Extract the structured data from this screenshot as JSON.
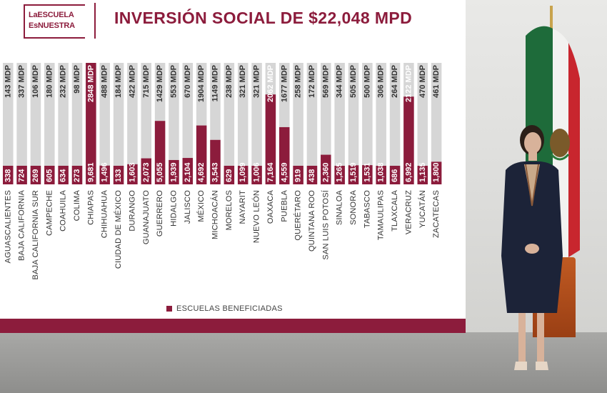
{
  "header": {
    "logo_line1": "LaESCUELA",
    "logo_line2": "EsNUESTRA",
    "title": "INVERSIÓN SOCIAL DE $22,048 MPD"
  },
  "legend": {
    "label": "ESCUELAS BENEFICIADAS"
  },
  "colors": {
    "bar": "#8c1c3c",
    "bar_background": "#d6d6d6",
    "accent": "#8c1c3c"
  },
  "chart_data": {
    "type": "bar",
    "title": "INVERSIÓN SOCIAL DE $22,048 MPD",
    "categories": [
      "AGUASCALIENTES",
      "BAJA CALIFORNIA",
      "BAJA CALIFORNIA SUR",
      "CAMPECHE",
      "COAHUILA",
      "COLIMA",
      "CHIAPAS",
      "CHIHUAHUA",
      "CIUDAD DE MÉXICO",
      "DURANGO",
      "GUANAJUATO",
      "GUERRERO",
      "HIDALGO",
      "JALISCO",
      "MÉXICO",
      "MICHOACÁN",
      "MORELOS",
      "NAYARIT",
      "NUEVO LEÓN",
      "OAXACA",
      "PUEBLA",
      "QUERÉTARO",
      "QUINTANA ROO",
      "SAN LUIS POTOSÍ",
      "SINALOA",
      "SONORA",
      "TABASCO",
      "TAMAULIPAS",
      "TLAXCALA",
      "VERACRUZ",
      "YUCATÁN",
      "ZACATECAS"
    ],
    "series": [
      {
        "name": "ESCUELAS BENEFICIADAS",
        "values": [
          338,
          724,
          269,
          605,
          634,
          273,
          9681,
          1496,
          133,
          1603,
          2073,
          5055,
          1939,
          2104,
          4692,
          3543,
          629,
          1099,
          1006,
          7164,
          4559,
          919,
          438,
          2360,
          1265,
          1519,
          1531,
          1038,
          686,
          6992,
          1135,
          1800
        ],
        "labels": [
          "338",
          "724",
          "269",
          "605",
          "634",
          "273",
          "9,681",
          "1,496",
          "133",
          "1,603",
          "2,073",
          "5,055",
          "1,939",
          "2,104",
          "4,692",
          "3,543",
          "629",
          "1,099",
          "1,006",
          "7,164",
          "4,559",
          "919",
          "438",
          "2,360",
          "1,265",
          "1,519",
          "1,531",
          "1,038",
          "686",
          "6,992",
          "1,135",
          "1,800"
        ]
      }
    ],
    "investment_labels": [
      "143 MDP",
      "337 MDP",
      "106 MDP",
      "180 MDP",
      "232 MDP",
      "98 MDP",
      "2848 MDP",
      "488 MDP",
      "184 MDP",
      "422 MDP",
      "715 MDP",
      "1429 MDP",
      "553 MDP",
      "670 MDP",
      "1904 MDP",
      "1149 MDP",
      "238 MDP",
      "321 MDP",
      "321 MDP",
      "2062 MDP",
      "1677 MDP",
      "258 MDP",
      "172 MDP",
      "569 MDP",
      "344 MDP",
      "505 MDP",
      "500 MDP",
      "306 MDP",
      "264 MDP",
      "2122 MDP",
      "470 MDP",
      "461 MDP"
    ],
    "legend_position": "bottom",
    "grid": false
  }
}
